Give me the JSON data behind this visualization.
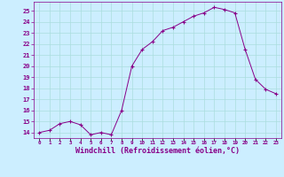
{
  "x": [
    0,
    1,
    2,
    3,
    4,
    5,
    6,
    7,
    8,
    9,
    10,
    11,
    12,
    13,
    14,
    15,
    16,
    17,
    18,
    19,
    20,
    21,
    22,
    23
  ],
  "y": [
    14.0,
    14.2,
    14.8,
    15.0,
    14.7,
    13.8,
    14.0,
    13.8,
    16.0,
    20.0,
    21.5,
    22.2,
    23.2,
    23.5,
    24.0,
    24.5,
    24.8,
    25.3,
    25.1,
    24.8,
    21.5,
    18.8,
    17.9,
    17.5
  ],
  "line_color": "#880088",
  "marker_color": "#880088",
  "bg_color": "#cceeff",
  "grid_color": "#aadddd",
  "axis_color": "#880088",
  "tick_color": "#880088",
  "xlabel": "Windchill (Refroidissement éolien,°C)",
  "ylabel_ticks": [
    14,
    15,
    16,
    17,
    18,
    19,
    20,
    21,
    22,
    23,
    24,
    25
  ],
  "ylim": [
    13.5,
    25.8
  ],
  "xlim": [
    -0.5,
    23.5
  ],
  "xtick_labels": [
    "0",
    "1",
    "2",
    "3",
    "4",
    "5",
    "6",
    "7",
    "8",
    "9",
    "10",
    "11",
    "12",
    "13",
    "14",
    "15",
    "16",
    "17",
    "18",
    "19",
    "20",
    "21",
    "22",
    "23"
  ]
}
